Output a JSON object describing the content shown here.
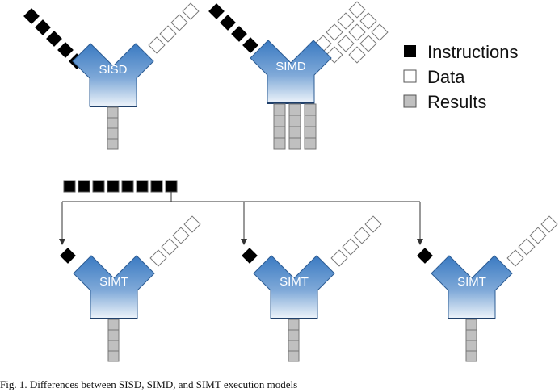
{
  "units": {
    "sisd": "SISD",
    "simd": "SIMD",
    "simt": [
      "SIMT",
      "SIMT",
      "SIMT"
    ]
  },
  "legend": {
    "instructions": "Instructions",
    "data": "Data",
    "results": "Results"
  },
  "colors": {
    "instruction": "#000000",
    "data": "#ffffff",
    "result": "#c0c0c0",
    "unit_top": "#3f7fc4",
    "unit_bottom": "#eaf1f8"
  },
  "caption": "Fig. 1. Differences between SISD, SIMD, and SIMT execution models"
}
